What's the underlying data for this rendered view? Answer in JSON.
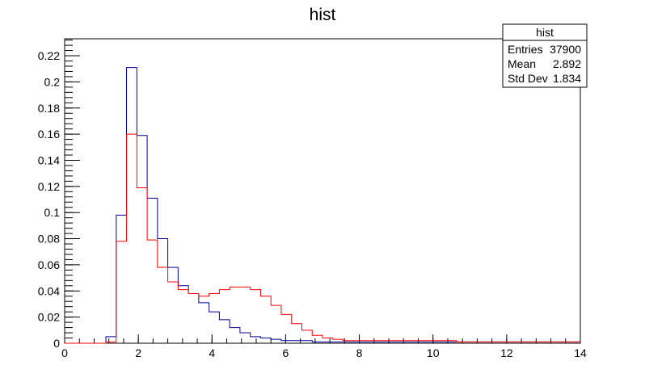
{
  "chart_data": {
    "type": "histogram",
    "title": "hist",
    "xlabel": "",
    "ylabel": "",
    "xlim": [
      0,
      14
    ],
    "ylim": [
      0,
      0.233
    ],
    "grid": false,
    "x_ticks": [
      {
        "value": 0,
        "label": "0"
      },
      {
        "value": 2,
        "label": "2"
      },
      {
        "value": 4,
        "label": "4"
      },
      {
        "value": 6,
        "label": "6"
      },
      {
        "value": 8,
        "label": "8"
      },
      {
        "value": 10,
        "label": "10"
      },
      {
        "value": 12,
        "label": "12"
      },
      {
        "value": 14,
        "label": "14"
      }
    ],
    "y_ticks": [
      {
        "value": 0,
        "label": "0"
      },
      {
        "value": 0.02,
        "label": "0.02"
      },
      {
        "value": 0.04,
        "label": "0.04"
      },
      {
        "value": 0.06,
        "label": "0.06"
      },
      {
        "value": 0.08,
        "label": "0.08"
      },
      {
        "value": 0.1,
        "label": "0.1"
      },
      {
        "value": 0.12,
        "label": "0.12"
      },
      {
        "value": 0.14,
        "label": "0.14"
      },
      {
        "value": 0.16,
        "label": "0.16"
      },
      {
        "value": 0.18,
        "label": "0.18"
      },
      {
        "value": 0.2,
        "label": "0.2"
      },
      {
        "value": 0.22,
        "label": "0.22"
      }
    ],
    "bin_width": 0.28,
    "bin_start": 0,
    "series": [
      {
        "color": "#000099",
        "values": [
          0,
          0,
          0,
          0,
          0.005,
          0.098,
          0.211,
          0.159,
          0.111,
          0.08,
          0.058,
          0.044,
          0.038,
          0.031,
          0.024,
          0.018,
          0.012,
          0.008,
          0.005,
          0.004,
          0.003,
          0.002,
          0.002,
          0.002,
          0.001,
          0.001,
          0.001,
          0.001,
          0.001,
          0.001,
          0.001,
          0.001,
          0.001,
          0.001,
          0.001,
          0.001,
          0.001,
          0.001,
          0.001,
          0.001,
          0.001,
          0.001,
          0.001,
          0.001,
          0.001,
          0.001,
          0.001,
          0.001,
          0.001,
          0.001
        ]
      },
      {
        "color": "#ff0000",
        "values": [
          0,
          0,
          0,
          0,
          0.001,
          0.078,
          0.16,
          0.119,
          0.079,
          0.058,
          0.047,
          0.041,
          0.038,
          0.036,
          0.038,
          0.041,
          0.043,
          0.043,
          0.041,
          0.036,
          0.029,
          0.022,
          0.015,
          0.01,
          0.006,
          0.004,
          0.003,
          0.002,
          0.002,
          0.002,
          0.002,
          0.002,
          0.002,
          0.002,
          0.002,
          0.002,
          0.002,
          0.002,
          0.001,
          0.001,
          0.001,
          0.001,
          0.001,
          0.001,
          0.001,
          0.001,
          0.001,
          0.001,
          0.001,
          0.001
        ]
      }
    ],
    "stats_box": {
      "title": "hist",
      "rows": [
        {
          "label": "Entries",
          "value": "37900"
        },
        {
          "label": "Mean",
          "value": "2.892"
        },
        {
          "label": "Std Dev",
          "value": "1.834"
        }
      ]
    }
  }
}
